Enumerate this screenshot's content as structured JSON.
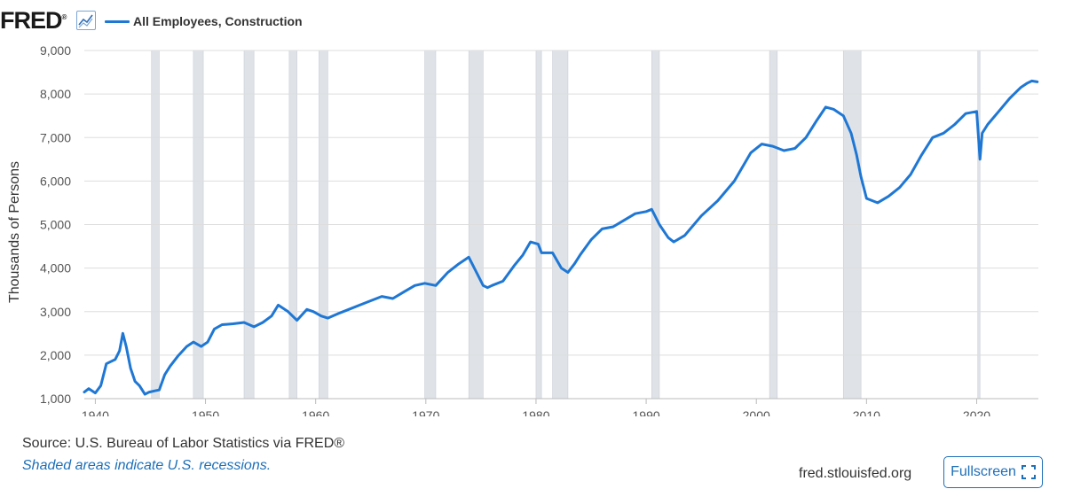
{
  "header": {
    "logo_text": "FRED",
    "logo_mark": "®",
    "legend_label": "All Employees, Construction",
    "graph_icon": "line-graph-icon"
  },
  "footer": {
    "source": "Source: U.S. Bureau of Labor Statistics via FRED®",
    "recession_note": "Shaded areas indicate U.S. recessions.",
    "site": "fred.stlouisfed.org",
    "fullscreen_label": "Fullscreen",
    "fullscreen_icon": "expand-corners-icon"
  },
  "colors": {
    "series": "#1f77d4",
    "recession": "#dfe3e8",
    "grid": "#dddddd",
    "link": "#1d6fb8"
  },
  "chart_data": {
    "type": "line",
    "title": "All Employees, Construction",
    "xlabel": "",
    "ylabel": "Thousands of Persons",
    "xlim": [
      1939.0,
      2025.6
    ],
    "ylim": [
      1000,
      9000
    ],
    "x_ticks": [
      1940,
      1950,
      1960,
      1970,
      1980,
      1990,
      2000,
      2010,
      2020
    ],
    "y_ticks": [
      1000,
      2000,
      3000,
      4000,
      5000,
      6000,
      7000,
      8000,
      9000
    ],
    "y_tick_labels": [
      "1,000",
      "2,000",
      "3,000",
      "4,000",
      "5,000",
      "6,000",
      "7,000",
      "8,000",
      "9,000"
    ],
    "recessions": [
      [
        1945.1,
        1945.8
      ],
      [
        1948.9,
        1949.8
      ],
      [
        1953.5,
        1954.4
      ],
      [
        1957.6,
        1958.3
      ],
      [
        1960.3,
        1961.1
      ],
      [
        1969.9,
        1970.9
      ],
      [
        1973.9,
        1975.2
      ],
      [
        1980.0,
        1980.5
      ],
      [
        1981.5,
        1982.9
      ],
      [
        1990.5,
        1991.2
      ],
      [
        2001.2,
        2001.9
      ],
      [
        2007.9,
        2009.5
      ],
      [
        2020.1,
        2020.3
      ]
    ],
    "series": [
      {
        "name": "All Employees, Construction",
        "x": [
          1939.0,
          1939.4,
          1940.0,
          1940.5,
          1941.0,
          1941.4,
          1941.8,
          1942.2,
          1942.5,
          1942.8,
          1943.2,
          1943.6,
          1944.0,
          1944.5,
          1944.9,
          1945.4,
          1945.8,
          1946.3,
          1946.8,
          1947.5,
          1948.3,
          1948.9,
          1949.6,
          1950.2,
          1950.8,
          1951.5,
          1952.5,
          1953.5,
          1954.4,
          1955.2,
          1956.0,
          1956.6,
          1957.5,
          1958.3,
          1959.2,
          1959.8,
          1960.5,
          1961.1,
          1962.0,
          1963.0,
          1964.0,
          1965.0,
          1966.0,
          1967.0,
          1968.0,
          1969.0,
          1969.9,
          1970.9,
          1972.0,
          1973.0,
          1973.9,
          1974.6,
          1975.2,
          1975.6,
          1976.0,
          1977.0,
          1978.0,
          1978.8,
          1979.5,
          1980.2,
          1980.5,
          1981.5,
          1982.3,
          1982.9,
          1983.5,
          1984.0,
          1985.0,
          1986.0,
          1987.0,
          1988.0,
          1989.0,
          1990.0,
          1990.5,
          1991.2,
          1992.0,
          1992.5,
          1993.5,
          1995.0,
          1996.5,
          1998.0,
          1999.5,
          2000.5,
          2001.5,
          2002.5,
          2003.5,
          2004.5,
          2005.5,
          2006.3,
          2007.0,
          2007.9,
          2008.6,
          2009.1,
          2009.5,
          2010.0,
          2011.0,
          2012.0,
          2013.0,
          2014.0,
          2015.0,
          2016.0,
          2017.0,
          2018.0,
          2019.0,
          2020.0,
          2020.3,
          2020.5,
          2021.0,
          2022.0,
          2023.0,
          2024.0,
          2024.6,
          2025.0,
          2025.5
        ],
        "y": [
          1150,
          1230,
          1130,
          1300,
          1800,
          1850,
          1900,
          2100,
          2500,
          2200,
          1700,
          1400,
          1300,
          1100,
          1150,
          1180,
          1200,
          1550,
          1750,
          1980,
          2200,
          2300,
          2200,
          2300,
          2600,
          2700,
          2720,
          2750,
          2650,
          2750,
          2900,
          3150,
          3000,
          2800,
          3050,
          3000,
          2900,
          2850,
          2950,
          3050,
          3150,
          3250,
          3350,
          3300,
          3450,
          3600,
          3650,
          3600,
          3900,
          4100,
          4250,
          3900,
          3600,
          3550,
          3600,
          3700,
          4050,
          4300,
          4600,
          4550,
          4350,
          4350,
          4000,
          3900,
          4100,
          4300,
          4650,
          4900,
          4950,
          5100,
          5250,
          5300,
          5350,
          5000,
          4700,
          4600,
          4750,
          5200,
          5550,
          6000,
          6650,
          6850,
          6800,
          6700,
          6750,
          7000,
          7400,
          7700,
          7650,
          7500,
          7100,
          6600,
          6100,
          5600,
          5500,
          5650,
          5850,
          6150,
          6600,
          7000,
          7100,
          7300,
          7550,
          7600,
          6500,
          7100,
          7300,
          7600,
          7900,
          8150,
          8250,
          8300,
          8280
        ]
      }
    ]
  }
}
